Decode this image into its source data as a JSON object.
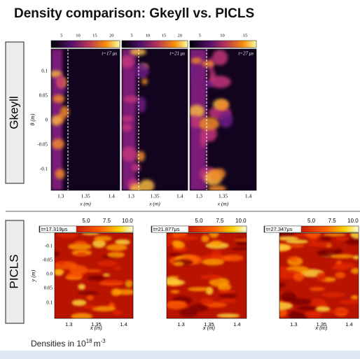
{
  "title": "Density comparison: Gkeyll vs. PICLS",
  "rows": [
    {
      "label": "Gkeyll",
      "y_axis_label": "θ (m)",
      "y_ticks": [
        "0.1",
        "0.05",
        "0",
        "-0.05",
        "-0.1"
      ],
      "panels": [
        {
          "time": "t=17 μs",
          "colorbar_ticks": [
            "5",
            "10",
            "15",
            "20"
          ],
          "x_ticks": [
            "1.3",
            "1.35",
            "1.4"
          ],
          "x_label": "x (m)"
        },
        {
          "time": "t=21 μs",
          "colorbar_ticks": [
            "5",
            "10",
            "15",
            "20"
          ],
          "x_ticks": [
            "1.3",
            "1.35",
            "1.4"
          ],
          "x_label": "x (m)"
        },
        {
          "time": "t=27 μs",
          "colorbar_ticks": [
            "5",
            "10",
            "15"
          ],
          "x_ticks": [
            "1.3",
            "1.35",
            "1.4"
          ],
          "x_label": "x (m)"
        }
      ]
    },
    {
      "label": "PICLS",
      "y_axis_label": "y (m)",
      "y_ticks": [
        "-0.1",
        "-0.05",
        "0.0",
        "0.05",
        "0.1"
      ],
      "panels": [
        {
          "time": "t=17.319μs",
          "colorbar_ticks": [
            "5.0",
            "7.5",
            "10.0"
          ],
          "x_ticks": [
            "1.3",
            "1.35",
            "1.4"
          ],
          "x_label": "x (m)"
        },
        {
          "time": "t=21.877μs",
          "colorbar_ticks": [
            "5.0",
            "7.5",
            "10.0"
          ],
          "x_ticks": [
            "1.3",
            "1.35",
            "1.4"
          ],
          "x_label": "x (m)"
        },
        {
          "time": "t=27.347μs",
          "colorbar_ticks": [
            "5.0",
            "7.5",
            "10.0"
          ],
          "x_ticks": [
            "1.3",
            "1.35",
            "1.4"
          ],
          "x_label": "x (m)"
        }
      ]
    }
  ],
  "footer": {
    "text": "Densities in 10",
    "exponent": "18",
    "unit": "m",
    "unit_exponent": "-3"
  }
}
